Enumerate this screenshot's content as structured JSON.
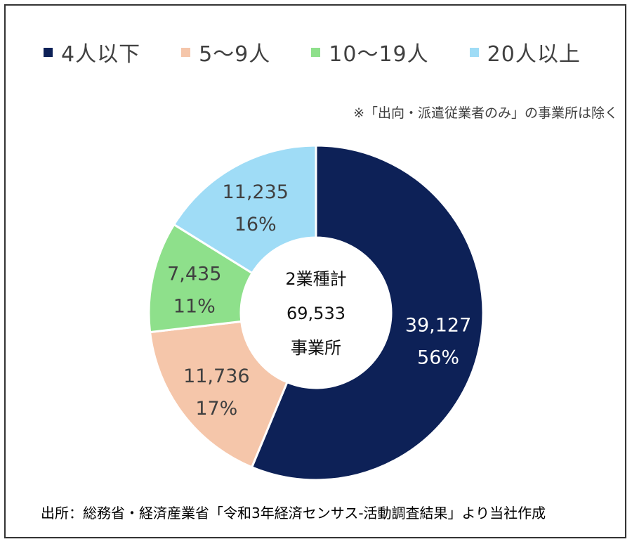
{
  "chart_data": {
    "type": "pie",
    "title": "",
    "categories": [
      "4人以下",
      "5～9人",
      "10～19人",
      "20人以上"
    ],
    "values": [
      39127,
      11736,
      7435,
      11235
    ],
    "percent_labels": [
      "56%",
      "17%",
      "11%",
      "16%"
    ],
    "value_labels": [
      "39,127",
      "11,736",
      "7,435",
      "11,235"
    ],
    "colors": [
      "#0d2157",
      "#f5c6aa",
      "#8ee08b",
      "#9fdcf6"
    ],
    "label_colors": [
      "#ffffff",
      "#404040",
      "#404040",
      "#404040"
    ],
    "donut": true,
    "legend_position": "top",
    "center_label": [
      "2業種計",
      "69,533",
      "事業所"
    ]
  },
  "legend": {
    "items": [
      {
        "label": "4人以下",
        "color": "#0d2157"
      },
      {
        "label": "5～9人",
        "color": "#f5c6aa"
      },
      {
        "label": "10～19人",
        "color": "#8ee08b"
      },
      {
        "label": "20人以上",
        "color": "#9fdcf6"
      }
    ]
  },
  "note": "※「出向・派遣従業者のみ」の事業所は除く",
  "source": "出所：総務省・経済産業省「令和3年経済センサス-活動調査結果」より当社作成"
}
